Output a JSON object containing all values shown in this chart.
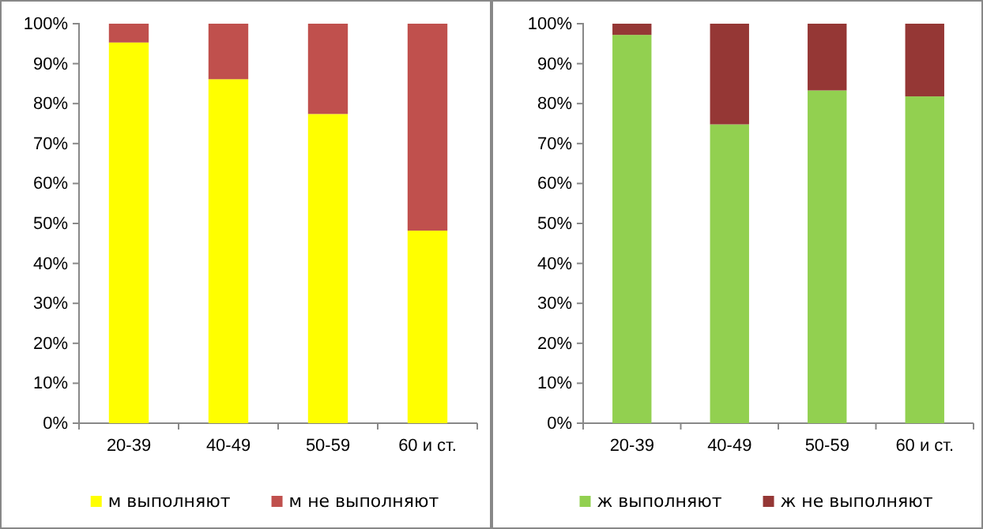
{
  "chart_data": [
    {
      "type": "bar",
      "stacked": true,
      "categories": [
        "20-39",
        "40-49",
        "50-59",
        "60 и ст."
      ],
      "series": [
        {
          "name": "м выполняют",
          "color": "#ffff00",
          "values": [
            95.3,
            86.1,
            77.4,
            48.2
          ]
        },
        {
          "name": "м не выполняют",
          "color": "#c0504d",
          "values": [
            4.7,
            13.9,
            22.6,
            51.8
          ]
        }
      ],
      "ylim": [
        0,
        100
      ],
      "yticks": [
        {
          "value": 0,
          "label": "0%"
        },
        {
          "value": 10,
          "label": "10%"
        },
        {
          "value": 20,
          "label": "20%"
        },
        {
          "value": 30,
          "label": "30%"
        },
        {
          "value": 40,
          "label": "40%"
        },
        {
          "value": 50,
          "label": "50%"
        },
        {
          "value": 60,
          "label": "60%"
        },
        {
          "value": 70,
          "label": "70%"
        },
        {
          "value": 80,
          "label": "80%"
        },
        {
          "value": 90,
          "label": "90%"
        },
        {
          "value": 100,
          "label": "100%"
        }
      ],
      "legend": "bottom",
      "grid": false
    },
    {
      "type": "bar",
      "stacked": true,
      "categories": [
        "20-39",
        "40-49",
        "50-59",
        "60 и ст."
      ],
      "series": [
        {
          "name": "ж выполняют",
          "color": "#92d050",
          "values": [
            97.2,
            74.8,
            83.3,
            81.8
          ]
        },
        {
          "name": "ж не выполняют",
          "color": "#953735",
          "values": [
            2.8,
            25.2,
            16.7,
            18.2
          ]
        }
      ],
      "ylim": [
        0,
        100
      ],
      "yticks": [
        {
          "value": 0,
          "label": "0%"
        },
        {
          "value": 10,
          "label": "10%"
        },
        {
          "value": 20,
          "label": "20%"
        },
        {
          "value": 30,
          "label": "30%"
        },
        {
          "value": 40,
          "label": "40%"
        },
        {
          "value": 50,
          "label": "50%"
        },
        {
          "value": 60,
          "label": "60%"
        },
        {
          "value": 70,
          "label": "70%"
        },
        {
          "value": 80,
          "label": "80%"
        },
        {
          "value": 90,
          "label": "90%"
        },
        {
          "value": 100,
          "label": "100%"
        }
      ],
      "legend": "bottom",
      "grid": false
    }
  ]
}
